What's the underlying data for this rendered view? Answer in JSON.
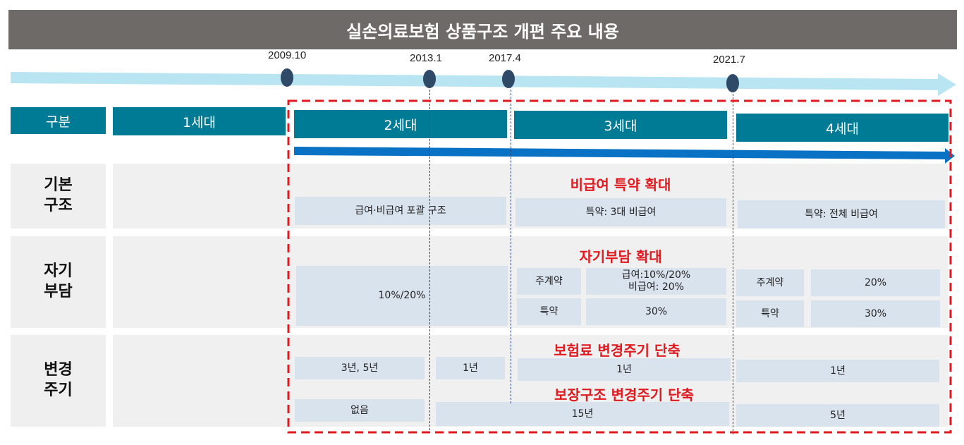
{
  "title": "실손의료보험 상품구조 개편 주요 내용",
  "timeline": {
    "dates": [
      "2009.10",
      "2013.1",
      "2017.4",
      "2021.7"
    ],
    "colors": {
      "arrow": "#b9e5f2",
      "band": "#0a72c4",
      "node": "#2f4a68",
      "frame": "#e0191f"
    }
  },
  "header": {
    "category": "구분",
    "gen1": "1세대",
    "gen2": "2세대",
    "gen3": "3세대",
    "gen4": "4세대"
  },
  "rows": {
    "basic": {
      "label": "기본\n구조",
      "note": "비급여 특약 확대",
      "gen2": "급여·비급여 포괄 구조",
      "gen3": "특약: 3대 비급여",
      "gen4": "특약: 전체 비급여"
    },
    "copay": {
      "label": "자기\n부담",
      "note": "자기부담 확대",
      "gen2": "10%/20%",
      "gen3_main_label": "주계약",
      "gen3_main_value": "급여:10%/20%\n비급여: 20%",
      "gen3_rider_label": "특약",
      "gen3_rider_value": "30%",
      "gen4_main_label": "주계약",
      "gen4_main_value": "20%",
      "gen4_rider_label": "특약",
      "gen4_rider_value": "30%"
    },
    "cycle": {
      "label": "변경\n주기",
      "note_premium": "보험료 변경주기 단축",
      "note_coverage": "보장구조 변경주기 단축",
      "premium_gen2_early": "3년, 5년",
      "premium_gen2_late": "1년",
      "premium_gen3": "1년",
      "premium_gen4": "1년",
      "coverage_gen2_early": "없음",
      "coverage_gen2_late_gen3": "15년",
      "coverage_gen4": "5년"
    }
  }
}
